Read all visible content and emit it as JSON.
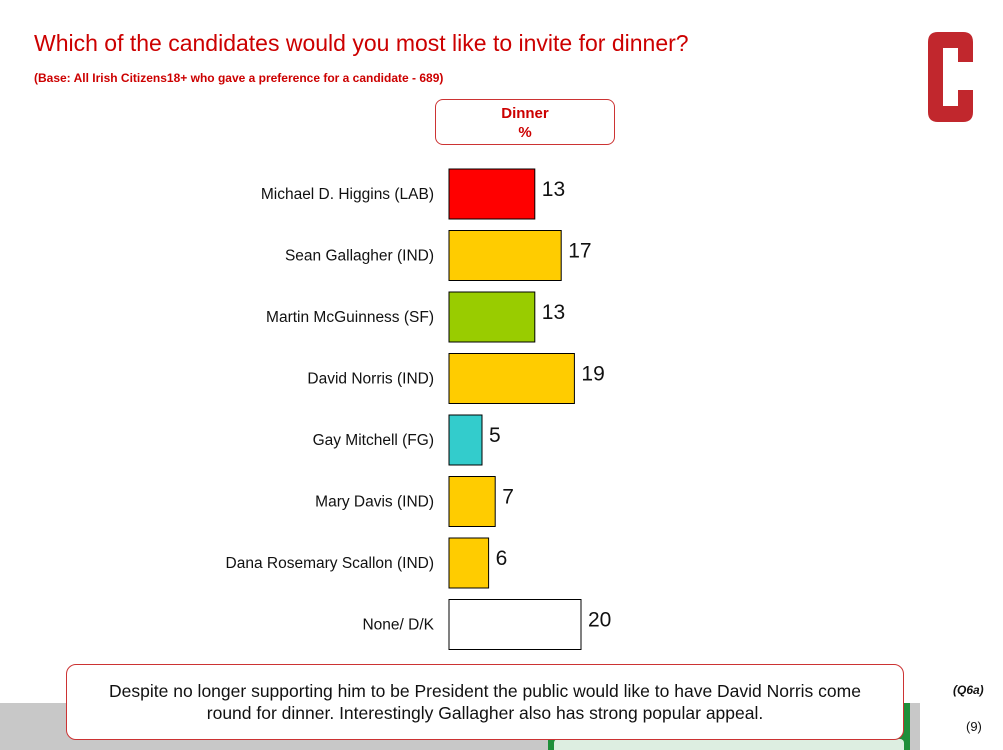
{
  "header": {
    "title": "Which of the candidates would you most like to invite for dinner?",
    "base": "(Base: All Irish Citizens18+ who gave a preference for a candidate - 689)",
    "logo_letter": "C"
  },
  "column_header": {
    "line1": "Dinner",
    "line2": "%"
  },
  "chart_data": {
    "type": "bar",
    "orientation": "horizontal",
    "categories": [
      "Michael D. Higgins (LAB)",
      "Sean Gallagher (IND)",
      "Martin McGuinness (SF)",
      "David Norris (IND)",
      "Gay Mitchell (FG)",
      "Mary Davis (IND)",
      "Dana Rosemary Scallon (IND)",
      "None/ D/K"
    ],
    "series": [
      {
        "values": [
          13,
          17,
          13,
          19,
          5,
          7,
          6,
          20
        ]
      }
    ],
    "colors": [
      "#ff0000",
      "#ffcc00",
      "#99cc00",
      "#ffcc00",
      "#33cccc",
      "#ffcc00",
      "#ffcc00",
      "#ffffff"
    ],
    "title": "",
    "xlabel": "",
    "ylabel": "",
    "grid": false,
    "legend": "none"
  },
  "callout": {
    "text": "Despite no longer supporting him to be President the public would like to have David Norris come round for dinner.  Interestingly Gallagher also has strong popular appeal."
  },
  "footer": {
    "question_ref": "(Q6a)",
    "page": "(9)"
  },
  "colors": {
    "accent": "#cc0000",
    "footer_green": "#1f8f3a",
    "footer_grey": "#c8c8c8"
  }
}
